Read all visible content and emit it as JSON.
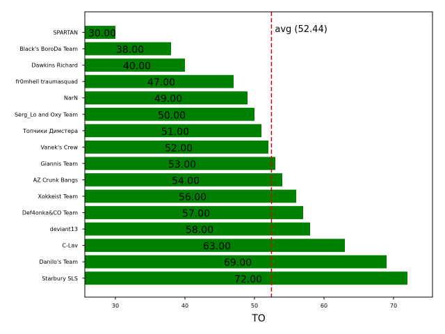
{
  "chart_data": {
    "type": "bar",
    "orientation": "horizontal",
    "categories": [
      "SPARTAN",
      "Black's BoroDa Team",
      "Dawkins Richard",
      "fr0mhell traumasquad",
      "NarN",
      "Serg_Lo and Oxy Team",
      "Топчики Димстера",
      "Vanek's Crew",
      "Giannis Team",
      "AZ Crunk Bangs",
      "Xokkeist Team",
      "Def4onka&CO Team",
      "deviant13",
      "C-Lav",
      "Danilo's Team",
      "Starbury SLS"
    ],
    "values": [
      30,
      38,
      40,
      47,
      49,
      50,
      51,
      52,
      53,
      54,
      56,
      57,
      58,
      63,
      69,
      72
    ],
    "data_labels": [
      "30.00",
      "38.00",
      "40.00",
      "47.00",
      "49.00",
      "50.00",
      "51.00",
      "52.00",
      "53.00",
      "54.00",
      "56.00",
      "57.00",
      "58.00",
      "63.00",
      "69.00",
      "72.00"
    ],
    "xlabel": "TO",
    "ylabel": "",
    "xlim": [
      25.6,
      75.6
    ],
    "xticks": [
      30,
      40,
      50,
      60,
      70
    ],
    "xtick_labels": [
      "30",
      "40",
      "50",
      "60",
      "70"
    ],
    "average": 52.44,
    "average_label": "avg (52.44)",
    "bar_color": "#008000",
    "avg_line_color": "#dd0000",
    "grid": false,
    "legend": "none"
  }
}
